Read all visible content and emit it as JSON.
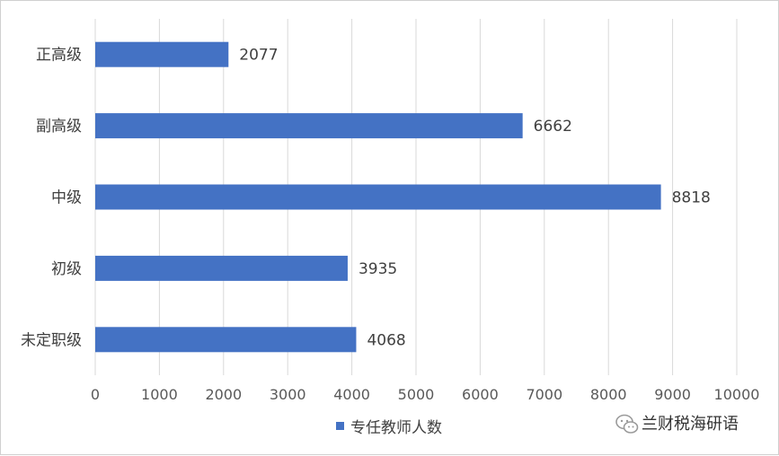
{
  "chart_data": {
    "type": "bar",
    "orientation": "horizontal",
    "categories": [
      "正高级",
      "副高级",
      "中级",
      "初级",
      "未定职级"
    ],
    "series": [
      {
        "name": "专任教师人数",
        "values": [
          2077,
          6662,
          8818,
          3935,
          4068
        ],
        "color": "#4472C4"
      }
    ],
    "xlim": [
      0,
      10000
    ],
    "xticks": [
      0,
      1000,
      2000,
      3000,
      4000,
      5000,
      6000,
      7000,
      8000,
      9000,
      10000
    ],
    "grid": true,
    "legend": "bottom",
    "title": "",
    "xlabel": "",
    "ylabel": ""
  },
  "watermark": {
    "icon": "wechat-icon",
    "text": "兰财税海研语"
  }
}
